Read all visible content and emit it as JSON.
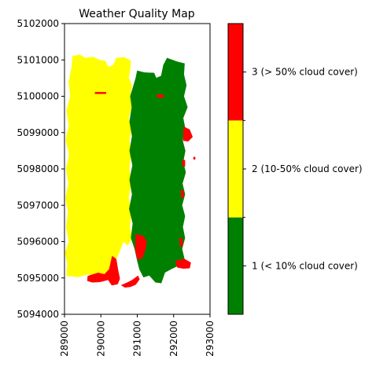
{
  "chart_data": {
    "type": "heatmap",
    "title": "Weather Quality Map",
    "xlabel": "",
    "ylabel": "",
    "xlim": [
      289000,
      293000
    ],
    "ylim": [
      5094000,
      5102000
    ],
    "x_ticks": [
      289000,
      290000,
      291000,
      292000,
      293000
    ],
    "y_ticks": [
      5094000,
      5095000,
      5096000,
      5097000,
      5098000,
      5099000,
      5100000,
      5101000,
      5102000
    ],
    "x_tick_labels": [
      "289000",
      "290000",
      "291000",
      "292000",
      "293000"
    ],
    "y_tick_labels": [
      "5094000",
      "5095000",
      "5096000",
      "5097000",
      "5098000",
      "5099000",
      "5100000",
      "5101000",
      "5102000"
    ],
    "grid": false,
    "colorbar": {
      "placement": "right",
      "classes": [
        {
          "label": "1 (< 10% cloud cover)",
          "value": 1,
          "color": "#008000"
        },
        {
          "label": "2 (10-50% cloud cover)",
          "value": 2,
          "color": "#ffff00"
        },
        {
          "label": "3 (> 50% cloud cover)",
          "value": 3,
          "color": "#ff0000"
        }
      ]
    },
    "regions": [
      {
        "class": 2,
        "color": "#ffff00",
        "points": [
          [
            289220,
            5101100
          ],
          [
            289420,
            5101140
          ],
          [
            289580,
            5101050
          ],
          [
            289780,
            5101080
          ],
          [
            289960,
            5101000
          ],
          [
            290130,
            5100960
          ],
          [
            290200,
            5100800
          ],
          [
            290350,
            5100860
          ],
          [
            290420,
            5101050
          ],
          [
            290640,
            5101070
          ],
          [
            290820,
            5100980
          ],
          [
            290800,
            5100700
          ],
          [
            290760,
            5100520
          ],
          [
            290850,
            5100300
          ],
          [
            290800,
            5100000
          ],
          [
            290840,
            5099700
          ],
          [
            290760,
            5099400
          ],
          [
            290840,
            5099100
          ],
          [
            290780,
            5098800
          ],
          [
            290820,
            5098400
          ],
          [
            290780,
            5098000
          ],
          [
            290830,
            5097600
          ],
          [
            290760,
            5097200
          ],
          [
            290840,
            5096800
          ],
          [
            290790,
            5096400
          ],
          [
            290850,
            5096100
          ],
          [
            290740,
            5095900
          ],
          [
            290620,
            5096000
          ],
          [
            290480,
            5095650
          ],
          [
            290360,
            5095380
          ],
          [
            290230,
            5095120
          ],
          [
            289930,
            5095060
          ],
          [
            289660,
            5095100
          ],
          [
            289380,
            5095030
          ],
          [
            289060,
            5095060
          ],
          [
            289080,
            5095400
          ],
          [
            289020,
            5095700
          ],
          [
            289120,
            5096000
          ],
          [
            289050,
            5096400
          ],
          [
            289100,
            5096800
          ],
          [
            289030,
            5097200
          ],
          [
            289110,
            5097600
          ],
          [
            289050,
            5098000
          ],
          [
            289130,
            5098400
          ],
          [
            289040,
            5098800
          ],
          [
            289120,
            5099200
          ],
          [
            289060,
            5099600
          ],
          [
            289160,
            5100000
          ],
          [
            289120,
            5100400
          ],
          [
            289200,
            5100800
          ]
        ]
      },
      {
        "class": 1,
        "color": "#008000",
        "points": [
          [
            291000,
            5100700
          ],
          [
            291200,
            5100650
          ],
          [
            291460,
            5100640
          ],
          [
            291520,
            5100500
          ],
          [
            291660,
            5100560
          ],
          [
            291720,
            5100860
          ],
          [
            291820,
            5101050
          ],
          [
            292100,
            5100950
          ],
          [
            292300,
            5100900
          ],
          [
            292280,
            5100600
          ],
          [
            292350,
            5100300
          ],
          [
            292280,
            5100000
          ],
          [
            292380,
            5099700
          ],
          [
            292260,
            5099400
          ],
          [
            292320,
            5099100
          ],
          [
            292240,
            5098800
          ],
          [
            292320,
            5098500
          ],
          [
            292260,
            5098200
          ],
          [
            292330,
            5097900
          ],
          [
            292240,
            5097600
          ],
          [
            292310,
            5097300
          ],
          [
            292230,
            5097000
          ],
          [
            292310,
            5096700
          ],
          [
            292250,
            5096400
          ],
          [
            292310,
            5096100
          ],
          [
            292230,
            5095800
          ],
          [
            292300,
            5095500
          ],
          [
            292150,
            5095350
          ],
          [
            291940,
            5095250
          ],
          [
            291760,
            5095150
          ],
          [
            291660,
            5094860
          ],
          [
            291500,
            5094880
          ],
          [
            291330,
            5095070
          ],
          [
            291170,
            5095020
          ],
          [
            291060,
            5095240
          ],
          [
            291000,
            5095480
          ],
          [
            290930,
            5095800
          ],
          [
            290830,
            5096100
          ],
          [
            290880,
            5096500
          ],
          [
            290780,
            5096900
          ],
          [
            290860,
            5097300
          ],
          [
            290790,
            5097700
          ],
          [
            290870,
            5098100
          ],
          [
            290790,
            5098500
          ],
          [
            290860,
            5098900
          ],
          [
            290790,
            5099300
          ],
          [
            290850,
            5099700
          ],
          [
            290810,
            5100000
          ],
          [
            290900,
            5100300
          ],
          [
            290960,
            5100500
          ]
        ]
      },
      {
        "class": 3,
        "color": "#ff0000",
        "points": [
          [
            289640,
            5095050
          ],
          [
            289920,
            5095140
          ],
          [
            290100,
            5095100
          ],
          [
            290230,
            5095240
          ],
          [
            290310,
            5095600
          ],
          [
            290420,
            5095520
          ],
          [
            290470,
            5095220
          ],
          [
            290520,
            5094980
          ],
          [
            290460,
            5094830
          ],
          [
            290300,
            5094800
          ],
          [
            290200,
            5094950
          ],
          [
            289980,
            5094890
          ],
          [
            289760,
            5094880
          ],
          [
            289630,
            5094920
          ]
        ]
      },
      {
        "class": 3,
        "color": "#ff0000",
        "points": [
          [
            290560,
            5094800
          ],
          [
            290720,
            5094870
          ],
          [
            290860,
            5094940
          ],
          [
            291020,
            5095060
          ],
          [
            291060,
            5094960
          ],
          [
            290960,
            5094820
          ],
          [
            290820,
            5094760
          ],
          [
            290660,
            5094740
          ]
        ]
      },
      {
        "class": 3,
        "color": "#ff0000",
        "points": [
          [
            290960,
            5096200
          ],
          [
            291160,
            5096160
          ],
          [
            291260,
            5096000
          ],
          [
            291220,
            5095780
          ],
          [
            291140,
            5095550
          ],
          [
            291010,
            5095500
          ],
          [
            290950,
            5095750
          ]
        ]
      },
      {
        "class": 3,
        "color": "#ff0000",
        "points": [
          [
            292050,
            5095470
          ],
          [
            292300,
            5095520
          ],
          [
            292470,
            5095420
          ],
          [
            292440,
            5095270
          ],
          [
            292260,
            5095260
          ],
          [
            292100,
            5095290
          ]
        ]
      },
      {
        "class": 3,
        "color": "#ff0000",
        "points": [
          [
            292280,
            5099160
          ],
          [
            292440,
            5099080
          ],
          [
            292520,
            5098880
          ],
          [
            292400,
            5098760
          ],
          [
            292260,
            5098780
          ]
        ]
      },
      {
        "class": 3,
        "color": "#ff0000",
        "points": [
          [
            292160,
            5096100
          ],
          [
            292240,
            5096080
          ],
          [
            292250,
            5095880
          ],
          [
            292180,
            5095860
          ]
        ]
      },
      {
        "class": 3,
        "color": "#ff0000",
        "points": [
          [
            292200,
            5097420
          ],
          [
            292270,
            5097400
          ],
          [
            292280,
            5097200
          ],
          [
            292210,
            5097220
          ]
        ]
      },
      {
        "class": 3,
        "color": "#ff0000",
        "points": [
          [
            292240,
            5098260
          ],
          [
            292310,
            5098240
          ],
          [
            292310,
            5098070
          ],
          [
            292240,
            5098090
          ]
        ]
      },
      {
        "class": 3,
        "color": "#ff0000",
        "points": [
          [
            291540,
            5100050
          ],
          [
            291720,
            5100040
          ],
          [
            291730,
            5099960
          ],
          [
            291550,
            5099970
          ]
        ]
      },
      {
        "class": 3,
        "color": "#ff0000",
        "points": [
          [
            289840,
            5100110
          ],
          [
            290140,
            5100110
          ],
          [
            290140,
            5100070
          ],
          [
            289840,
            5100070
          ]
        ]
      },
      {
        "class": 3,
        "color": "#ff0000",
        "points": [
          [
            292560,
            5098340
          ],
          [
            292600,
            5098310
          ],
          [
            292580,
            5098250
          ],
          [
            292540,
            5098280
          ]
        ]
      }
    ]
  }
}
